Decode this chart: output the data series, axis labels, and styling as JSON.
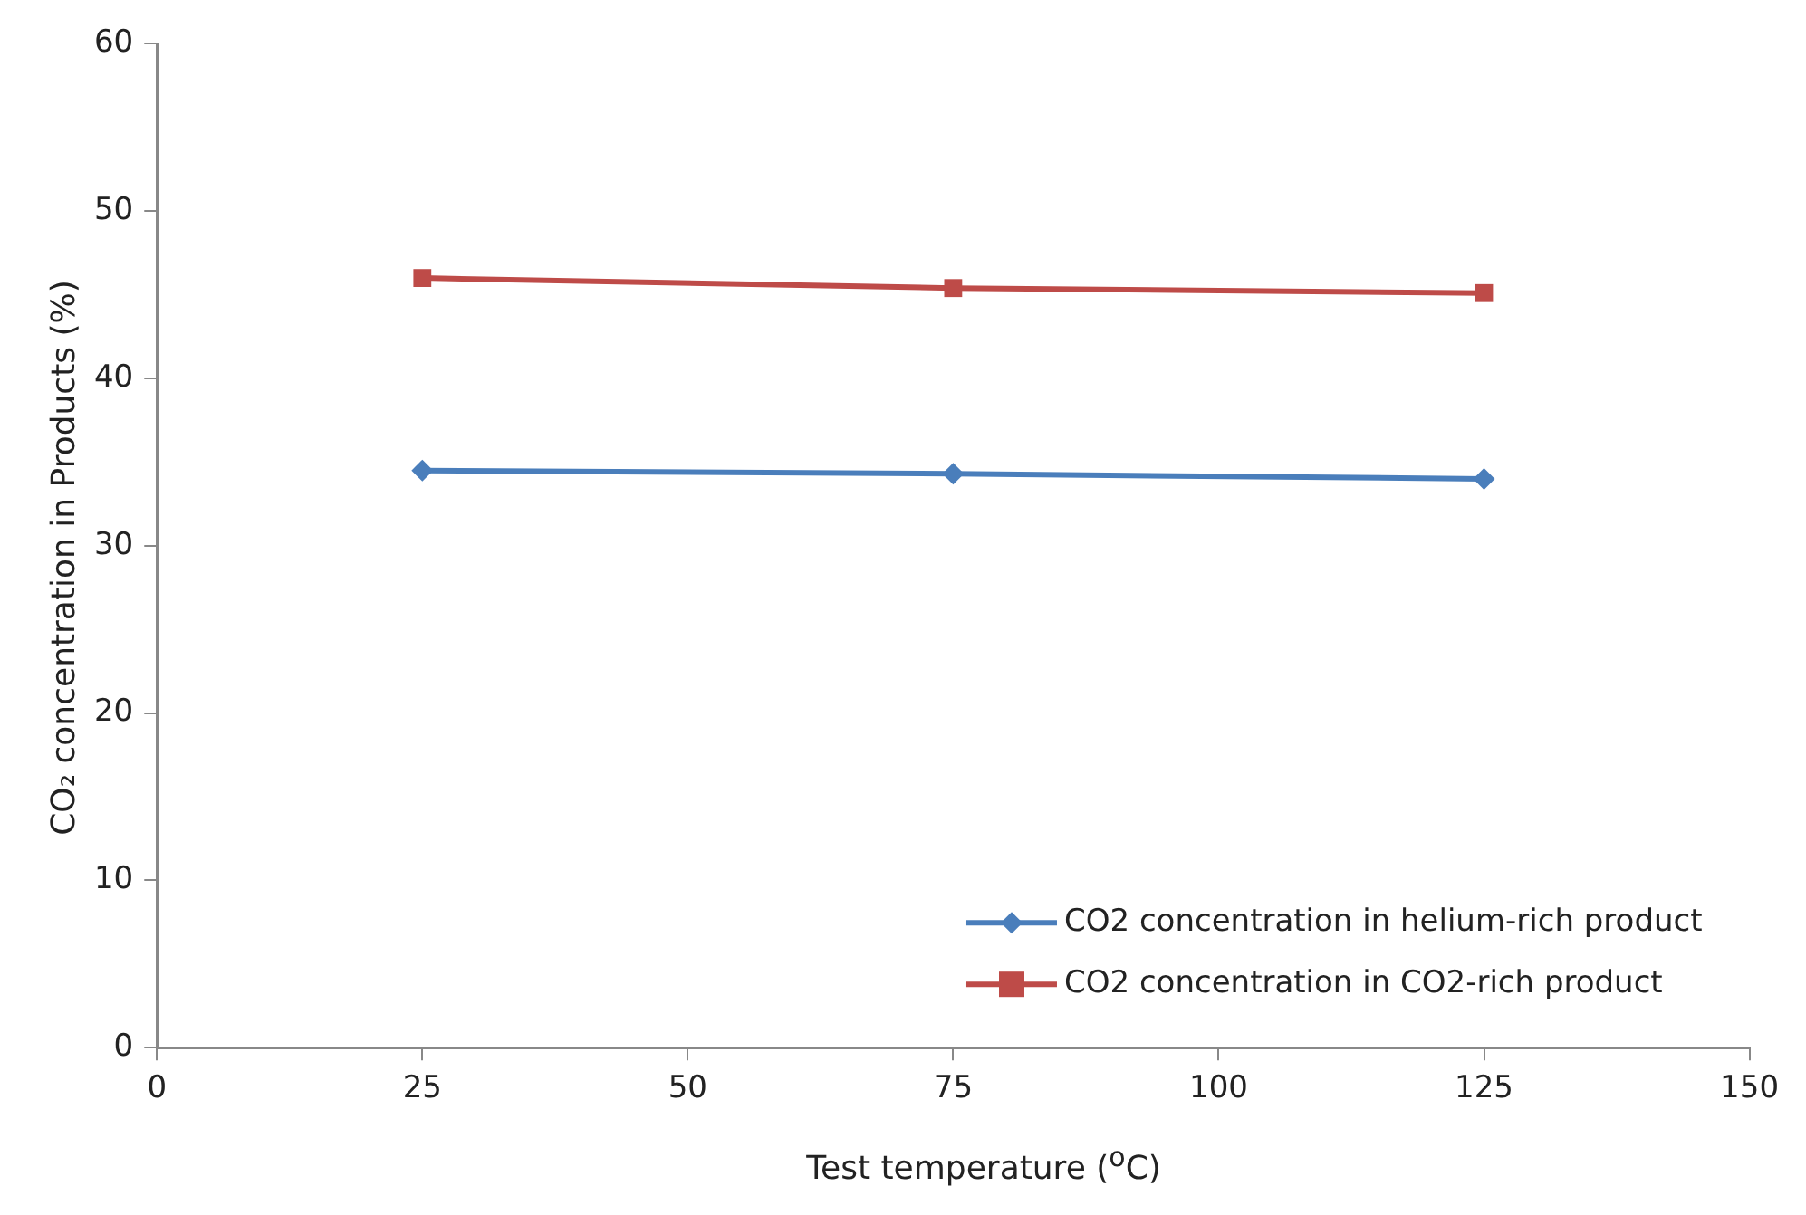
{
  "chart_data": {
    "type": "line",
    "xlabel": "Test temperature ($^{o}$C)",
    "ylabel": "CO₂ concentration in Products (%)",
    "x": [
      25,
      75,
      125
    ],
    "series": [
      {
        "name": "CO2 concentration in helium-rich product",
        "color": "#4a7ebb",
        "marker": "diamond",
        "values": [
          34.5,
          34.3,
          34.0
        ]
      },
      {
        "name": "CO2 concentration in CO2-rich product",
        "color": "#be4b48",
        "marker": "square",
        "values": [
          46.0,
          45.4,
          45.1
        ]
      }
    ],
    "xlim": [
      0,
      150
    ],
    "xticks": [
      0,
      25,
      50,
      75,
      100,
      125,
      150
    ],
    "ylim": [
      0,
      60
    ],
    "yticks": [
      0,
      10,
      20,
      30,
      40,
      50,
      60
    ],
    "grid": false,
    "legend": "bottom right",
    "line_style": "solid"
  }
}
